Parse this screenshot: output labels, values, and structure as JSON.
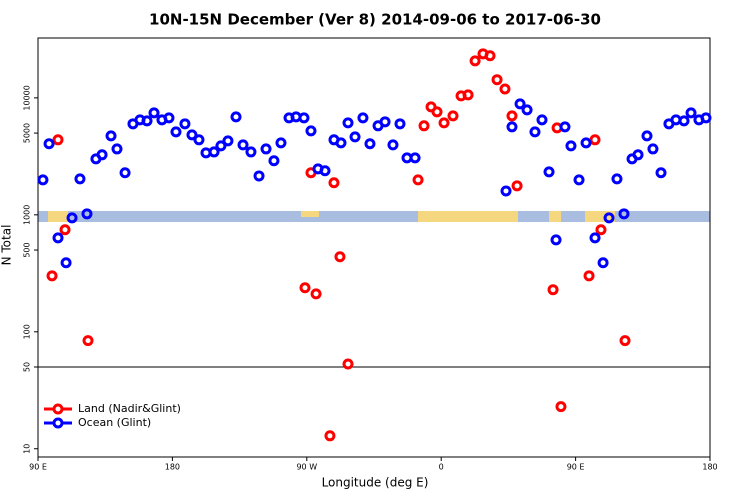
{
  "chart_data": {
    "type": "scatter",
    "title": "10N-15N December (Ver 8)   2014-09-06 to 2017-06-30",
    "x_label": "Longitude (deg E)",
    "y_label": "N Total",
    "xlim": [
      0,
      450
    ],
    "ylim": [
      8.5,
      32500
    ],
    "log_y": true,
    "legend": "bottom left",
    "xticks": [
      {
        "value": 0,
        "label": "90 E"
      },
      {
        "value": 90,
        "label": "180"
      },
      {
        "value": 180,
        "label": "90 W"
      },
      {
        "value": 270,
        "label": "0"
      },
      {
        "value": 360,
        "label": "90 E"
      },
      {
        "value": 450,
        "label": "180"
      }
    ],
    "yticks": [
      10,
      50,
      100,
      500,
      1000,
      5000,
      10000
    ],
    "hline": 50,
    "series": [
      {
        "name": "Land (Nadir&Glint)",
        "color": "#ff0000",
        "x": [
          9.4,
          13.4,
          18.1,
          33.5,
          178.8,
          182.8,
          186.2,
          195.5,
          198.2,
          202.2,
          207.6,
          254.5,
          258.5,
          263.2,
          267.2,
          271.9,
          277.9,
          283.3,
          288.0,
          292.7,
          298.0,
          302.7,
          307.4,
          312.7,
          317.4,
          320.8,
          344.9,
          347.6,
          350.2,
          369.0,
          373.0,
          377.0,
          393.1
        ],
        "values": [
          301,
          4380,
          745,
          84,
          238,
          2290,
          211,
          12.9,
          1880,
          438,
          53,
          1990,
          5770,
          8380,
          7590,
          6110,
          7020,
          10400,
          10600,
          20700,
          23800,
          22900,
          14300,
          11900,
          7020,
          1770,
          229,
          5540,
          22.9,
          301,
          4380,
          745,
          84
        ]
      },
      {
        "name": "Ocean (Glint)",
        "color": "#0000ff",
        "x": [
          3.3,
          7.4,
          13.4,
          18.8,
          22.8,
          28.1,
          32.8,
          38.8,
          42.9,
          48.9,
          52.9,
          58.3,
          63.6,
          68.3,
          73.0,
          77.7,
          83.0,
          87.7,
          92.4,
          98.4,
          103.1,
          107.8,
          112.5,
          117.9,
          122.5,
          127.2,
          132.6,
          137.3,
          142.6,
          148.0,
          152.7,
          158.0,
          162.7,
          168.1,
          172.8,
          178.1,
          182.8,
          187.5,
          192.2,
          198.2,
          202.9,
          207.6,
          212.3,
          217.6,
          222.3,
          227.7,
          232.4,
          237.7,
          242.4,
          247.1,
          252.5,
          313.4,
          317.4,
          322.8,
          327.5,
          332.8,
          337.5,
          342.2,
          346.9,
          352.9,
          356.9,
          362.3,
          367.0,
          373.0,
          378.4,
          382.4,
          387.7,
          392.4,
          397.8,
          401.8,
          407.8,
          411.8,
          417.2,
          422.5,
          427.2,
          432.6,
          437.3,
          442.6,
          447.3
        ],
        "values": [
          1990,
          4050,
          635,
          389,
          942,
          2030,
          1020,
          3010,
          3260,
          4730,
          3660,
          2290,
          6000,
          6490,
          6360,
          7440,
          6490,
          6740,
          5120,
          6000,
          4830,
          4380,
          3390,
          3450,
          3890,
          4290,
          6880,
          3960,
          3450,
          2150,
          3660,
          2900,
          4120,
          6740,
          6880,
          6740,
          5220,
          2470,
          2380,
          4380,
          4120,
          6110,
          4640,
          6740,
          4050,
          5770,
          6240,
          3960,
          6000,
          3070,
          3070,
          1600,
          5650,
          8890,
          7900,
          5120,
          6490,
          2330,
          611,
          5650,
          3890,
          1990,
          4120,
          635,
          389,
          942,
          2030,
          1020,
          3010,
          3260,
          4730,
          3660,
          2290,
          6000,
          6490,
          6360,
          7440,
          6490,
          6740
        ]
      }
    ]
  }
}
